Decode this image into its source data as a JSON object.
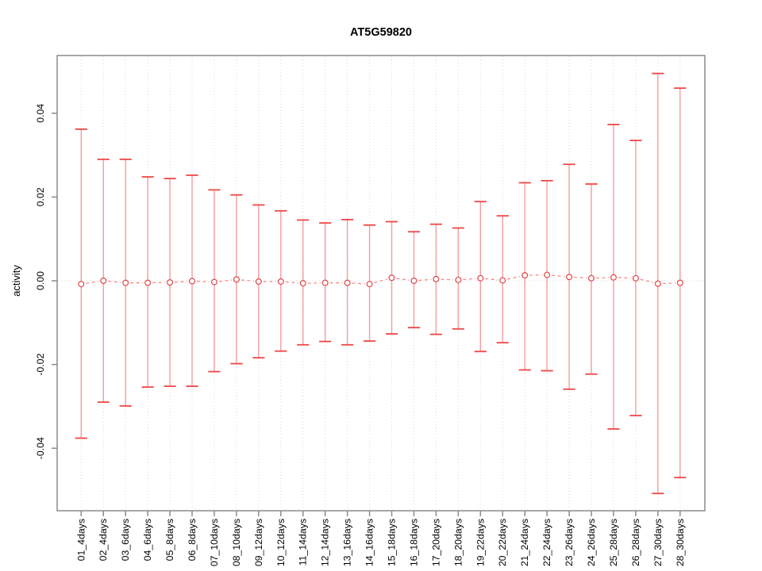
{
  "chart_data": {
    "type": "errorbar",
    "title": "AT5G59820",
    "xlabel": "",
    "ylabel": "activity",
    "ylim": [
      -0.055,
      0.054
    ],
    "yticks": [
      -0.04,
      -0.02,
      0,
      0.02,
      0.04
    ],
    "ytick_labels": [
      "-0.04",
      "-0.02",
      "0.00",
      "0.02",
      "0.04"
    ],
    "grid": "dotted vertical gridline at each category; dotted horizontal line at y=0",
    "legend": "none",
    "categories": [
      "01_4days",
      "02_4days",
      "03_6days",
      "04_6days",
      "05_8days",
      "06_8days",
      "07_10days",
      "08_10days",
      "09_12days",
      "10_12days",
      "11_14days",
      "12_14days",
      "13_16days",
      "14_16days",
      "15_18days",
      "16_18days",
      "17_20days",
      "18_20days",
      "19_22days",
      "20_22days",
      "21_24days",
      "22_24days",
      "23_26days",
      "24_26days",
      "25_28days",
      "26_28days",
      "27_30days",
      "28_30days"
    ],
    "series": [
      {
        "name": "mean",
        "values": [
          -0.0008,
          0.0,
          -0.0005,
          -0.0005,
          -0.0004,
          -0.0001,
          -0.0003,
          0.0003,
          -0.0002,
          -0.0002,
          -0.0006,
          -0.0005,
          -0.0005,
          -0.0008,
          0.0007,
          0.0,
          0.0004,
          0.0002,
          0.0006,
          0.0001,
          0.0013,
          0.0014,
          0.0009,
          0.0006,
          0.0008,
          0.0006,
          -0.0007,
          -0.0005
        ]
      },
      {
        "name": "upper",
        "values": [
          0.0362,
          0.029,
          0.029,
          0.0248,
          0.0244,
          0.0252,
          0.0217,
          0.0205,
          0.0181,
          0.0167,
          0.0145,
          0.0138,
          0.0146,
          0.0133,
          0.0141,
          0.0117,
          0.0135,
          0.0126,
          0.0189,
          0.0155,
          0.0234,
          0.0239,
          0.0278,
          0.0231,
          0.0373,
          0.0335,
          0.0495,
          0.046
        ]
      },
      {
        "name": "lower",
        "values": [
          -0.0376,
          -0.029,
          -0.0299,
          -0.0254,
          -0.0252,
          -0.0252,
          -0.0217,
          -0.0198,
          -0.0184,
          -0.0168,
          -0.0153,
          -0.0145,
          -0.0153,
          -0.0144,
          -0.0127,
          -0.0112,
          -0.0128,
          -0.0115,
          -0.0169,
          -0.0148,
          -0.0213,
          -0.0215,
          -0.0259,
          -0.0223,
          -0.0354,
          -0.0322,
          -0.0508,
          -0.047
        ]
      }
    ],
    "colors": {
      "frame": "#8b8b8b",
      "grid": "#dadada",
      "bar": "#f59c9c",
      "cap": "#ee4747",
      "dash": "#f48484",
      "point": "#e04646",
      "text": "#000000",
      "background": "#ffffff"
    }
  }
}
